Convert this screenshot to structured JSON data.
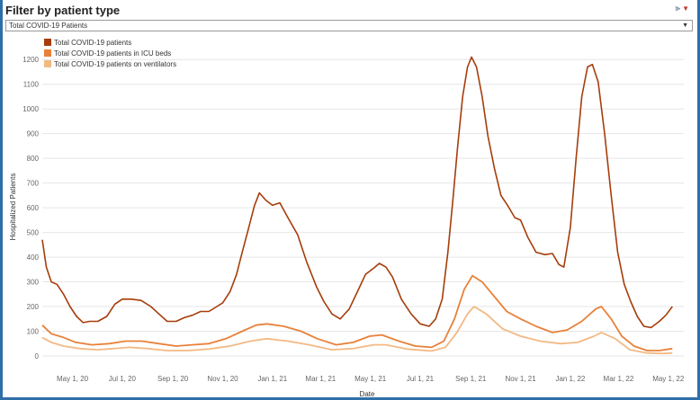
{
  "filter": {
    "title": "Filter by patient type",
    "selected": "Total COVID-19 Patients",
    "icon": "filter-icon"
  },
  "colors": {
    "total": "#a63d0a",
    "icu": "#e8813a",
    "vent": "#f3b984",
    "grid": "#e6e6e6",
    "frame": "#2f6fa8"
  },
  "chart_data": {
    "type": "line",
    "title": "",
    "xlabel": "Date",
    "ylabel": "Hospitalized Patients",
    "ylim": [
      0,
      1230
    ],
    "yticks": [
      0,
      100,
      200,
      300,
      400,
      500,
      600,
      700,
      800,
      900,
      1000,
      1100,
      1200
    ],
    "xlim": [
      "2020-03-25",
      "2022-05-20"
    ],
    "xticks": [
      {
        "date": "2020-05-01",
        "label": "May 1, 20"
      },
      {
        "date": "2020-07-01",
        "label": "Jul 1, 20"
      },
      {
        "date": "2020-09-01",
        "label": "Sep 1, 20"
      },
      {
        "date": "2020-11-01",
        "label": "Nov 1, 20"
      },
      {
        "date": "2021-01-01",
        "label": "Jan 1, 21"
      },
      {
        "date": "2021-03-01",
        "label": "Mar 1, 21"
      },
      {
        "date": "2021-05-01",
        "label": "May 1, 21"
      },
      {
        "date": "2021-07-01",
        "label": "Jul 1, 21"
      },
      {
        "date": "2021-09-01",
        "label": "Sep 1, 21"
      },
      {
        "date": "2021-11-01",
        "label": "Nov 1, 21"
      },
      {
        "date": "2022-01-01",
        "label": "Jan 1, 22"
      },
      {
        "date": "2022-03-01",
        "label": "Mar 1, 22"
      },
      {
        "date": "2022-05-01",
        "label": "May 1, 22"
      }
    ],
    "legend": [
      "Total COVID-19 patients",
      "Total COVID-19 patients in ICU beds",
      "Total COVID-19 patients on ventilators"
    ],
    "series": [
      {
        "name": "Total COVID-19 patients",
        "key": "total",
        "points": [
          [
            "2020-03-25",
            470
          ],
          [
            "2020-03-30",
            360
          ],
          [
            "2020-04-05",
            300
          ],
          [
            "2020-04-12",
            290
          ],
          [
            "2020-04-20",
            250
          ],
          [
            "2020-04-28",
            200
          ],
          [
            "2020-05-06",
            160
          ],
          [
            "2020-05-14",
            135
          ],
          [
            "2020-05-22",
            140
          ],
          [
            "2020-06-01",
            140
          ],
          [
            "2020-06-12",
            160
          ],
          [
            "2020-06-22",
            210
          ],
          [
            "2020-07-01",
            230
          ],
          [
            "2020-07-12",
            230
          ],
          [
            "2020-07-24",
            225
          ],
          [
            "2020-08-05",
            200
          ],
          [
            "2020-08-15",
            170
          ],
          [
            "2020-08-25",
            140
          ],
          [
            "2020-09-05",
            140
          ],
          [
            "2020-09-15",
            155
          ],
          [
            "2020-09-25",
            165
          ],
          [
            "2020-10-05",
            180
          ],
          [
            "2020-10-15",
            180
          ],
          [
            "2020-10-25",
            200
          ],
          [
            "2020-11-01",
            215
          ],
          [
            "2020-11-10",
            260
          ],
          [
            "2020-11-18",
            330
          ],
          [
            "2020-11-25",
            420
          ],
          [
            "2020-12-03",
            520
          ],
          [
            "2020-12-10",
            610
          ],
          [
            "2020-12-16",
            660
          ],
          [
            "2020-12-24",
            630
          ],
          [
            "2021-01-01",
            610
          ],
          [
            "2021-01-10",
            620
          ],
          [
            "2021-01-20",
            560
          ],
          [
            "2021-02-01",
            490
          ],
          [
            "2021-02-12",
            380
          ],
          [
            "2021-02-24",
            280
          ],
          [
            "2021-03-05",
            220
          ],
          [
            "2021-03-15",
            170
          ],
          [
            "2021-03-25",
            150
          ],
          [
            "2021-04-05",
            190
          ],
          [
            "2021-04-15",
            260
          ],
          [
            "2021-04-25",
            330
          ],
          [
            "2021-05-05",
            355
          ],
          [
            "2021-05-12",
            375
          ],
          [
            "2021-05-20",
            360
          ],
          [
            "2021-05-28",
            320
          ],
          [
            "2021-06-08",
            230
          ],
          [
            "2021-06-20",
            170
          ],
          [
            "2021-07-01",
            130
          ],
          [
            "2021-07-12",
            120
          ],
          [
            "2021-07-20",
            150
          ],
          [
            "2021-07-28",
            230
          ],
          [
            "2021-08-04",
            420
          ],
          [
            "2021-08-10",
            630
          ],
          [
            "2021-08-16",
            850
          ],
          [
            "2021-08-22",
            1050
          ],
          [
            "2021-08-28",
            1170
          ],
          [
            "2021-09-02",
            1210
          ],
          [
            "2021-09-08",
            1170
          ],
          [
            "2021-09-15",
            1050
          ],
          [
            "2021-09-22",
            890
          ],
          [
            "2021-09-30",
            760
          ],
          [
            "2021-10-08",
            650
          ],
          [
            "2021-10-16",
            610
          ],
          [
            "2021-10-25",
            560
          ],
          [
            "2021-11-01",
            550
          ],
          [
            "2021-11-10",
            480
          ],
          [
            "2021-11-20",
            420
          ],
          [
            "2021-12-01",
            410
          ],
          [
            "2021-12-10",
            415
          ],
          [
            "2021-12-18",
            370
          ],
          [
            "2021-12-24",
            360
          ],
          [
            "2022-01-01",
            520
          ],
          [
            "2022-01-08",
            800
          ],
          [
            "2022-01-15",
            1050
          ],
          [
            "2022-01-22",
            1170
          ],
          [
            "2022-01-28",
            1180
          ],
          [
            "2022-02-04",
            1110
          ],
          [
            "2022-02-12",
            900
          ],
          [
            "2022-02-20",
            650
          ],
          [
            "2022-02-28",
            420
          ],
          [
            "2022-03-08",
            290
          ],
          [
            "2022-03-16",
            220
          ],
          [
            "2022-03-24",
            160
          ],
          [
            "2022-04-01",
            120
          ],
          [
            "2022-04-10",
            115
          ],
          [
            "2022-04-20",
            140
          ],
          [
            "2022-04-28",
            165
          ],
          [
            "2022-05-06",
            200
          ]
        ]
      },
      {
        "name": "Total COVID-19 patients in ICU beds",
        "key": "icu",
        "points": [
          [
            "2020-03-25",
            125
          ],
          [
            "2020-04-05",
            90
          ],
          [
            "2020-04-20",
            75
          ],
          [
            "2020-05-05",
            55
          ],
          [
            "2020-05-25",
            45
          ],
          [
            "2020-06-15",
            50
          ],
          [
            "2020-07-05",
            60
          ],
          [
            "2020-07-25",
            60
          ],
          [
            "2020-08-15",
            50
          ],
          [
            "2020-09-05",
            40
          ],
          [
            "2020-09-25",
            45
          ],
          [
            "2020-10-15",
            50
          ],
          [
            "2020-11-05",
            70
          ],
          [
            "2020-11-25",
            100
          ],
          [
            "2020-12-12",
            125
          ],
          [
            "2020-12-25",
            130
          ],
          [
            "2021-01-15",
            120
          ],
          [
            "2021-02-05",
            100
          ],
          [
            "2021-02-25",
            70
          ],
          [
            "2021-03-20",
            45
          ],
          [
            "2021-04-10",
            55
          ],
          [
            "2021-04-30",
            80
          ],
          [
            "2021-05-15",
            85
          ],
          [
            "2021-06-05",
            60
          ],
          [
            "2021-06-25",
            40
          ],
          [
            "2021-07-15",
            35
          ],
          [
            "2021-07-30",
            60
          ],
          [
            "2021-08-12",
            150
          ],
          [
            "2021-08-24",
            270
          ],
          [
            "2021-09-03",
            325
          ],
          [
            "2021-09-15",
            300
          ],
          [
            "2021-09-30",
            240
          ],
          [
            "2021-10-15",
            180
          ],
          [
            "2021-11-01",
            150
          ],
          [
            "2021-11-20",
            120
          ],
          [
            "2021-12-10",
            95
          ],
          [
            "2021-12-28",
            105
          ],
          [
            "2022-01-15",
            140
          ],
          [
            "2022-02-01",
            190
          ],
          [
            "2022-02-08",
            200
          ],
          [
            "2022-02-20",
            150
          ],
          [
            "2022-03-05",
            80
          ],
          [
            "2022-03-20",
            40
          ],
          [
            "2022-04-05",
            22
          ],
          [
            "2022-04-20",
            22
          ],
          [
            "2022-05-06",
            30
          ]
        ]
      },
      {
        "name": "Total COVID-19 patients on ventilators",
        "key": "vent",
        "points": [
          [
            "2020-03-25",
            75
          ],
          [
            "2020-04-05",
            55
          ],
          [
            "2020-04-20",
            40
          ],
          [
            "2020-05-10",
            30
          ],
          [
            "2020-06-01",
            25
          ],
          [
            "2020-06-20",
            30
          ],
          [
            "2020-07-10",
            35
          ],
          [
            "2020-08-01",
            30
          ],
          [
            "2020-08-25",
            22
          ],
          [
            "2020-09-20",
            22
          ],
          [
            "2020-10-15",
            28
          ],
          [
            "2020-11-10",
            40
          ],
          [
            "2020-12-05",
            60
          ],
          [
            "2020-12-25",
            70
          ],
          [
            "2021-01-20",
            60
          ],
          [
            "2021-02-15",
            45
          ],
          [
            "2021-03-15",
            25
          ],
          [
            "2021-04-10",
            30
          ],
          [
            "2021-05-05",
            45
          ],
          [
            "2021-05-20",
            45
          ],
          [
            "2021-06-15",
            28
          ],
          [
            "2021-07-15",
            20
          ],
          [
            "2021-08-01",
            35
          ],
          [
            "2021-08-15",
            95
          ],
          [
            "2021-08-28",
            170
          ],
          [
            "2021-09-05",
            200
          ],
          [
            "2021-09-20",
            170
          ],
          [
            "2021-10-10",
            110
          ],
          [
            "2021-11-01",
            80
          ],
          [
            "2021-11-25",
            60
          ],
          [
            "2021-12-20",
            50
          ],
          [
            "2022-01-10",
            55
          ],
          [
            "2022-01-30",
            80
          ],
          [
            "2022-02-08",
            95
          ],
          [
            "2022-02-25",
            70
          ],
          [
            "2022-03-15",
            25
          ],
          [
            "2022-04-05",
            12
          ],
          [
            "2022-04-25",
            10
          ],
          [
            "2022-05-06",
            12
          ]
        ]
      }
    ]
  }
}
